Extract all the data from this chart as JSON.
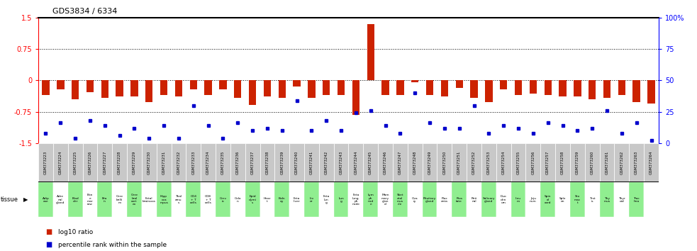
{
  "title": "GDS3834 / 6334",
  "gsm_ids": [
    "GSM373223",
    "GSM373224",
    "GSM373225",
    "GSM373226",
    "GSM373227",
    "GSM373228",
    "GSM373229",
    "GSM373230",
    "GSM373231",
    "GSM373232",
    "GSM373233",
    "GSM373234",
    "GSM373235",
    "GSM373236",
    "GSM373237",
    "GSM373238",
    "GSM373239",
    "GSM373240",
    "GSM373241",
    "GSM373242",
    "GSM373243",
    "GSM373244",
    "GSM373245",
    "GSM373246",
    "GSM373247",
    "GSM373248",
    "GSM373249",
    "GSM373250",
    "GSM373251",
    "GSM373252",
    "GSM373253",
    "GSM373254",
    "GSM373255",
    "GSM373256",
    "GSM373257",
    "GSM373258",
    "GSM373259",
    "GSM373260",
    "GSM373261",
    "GSM373262",
    "GSM373263",
    "GSM373264"
  ],
  "tissues": [
    "Adip\nose",
    "Adre\nnal\ngland",
    "Blad\nder",
    "Bon\ne\nmar\nrow",
    "Bra\nin",
    "Cere\nbelli\nm",
    "Cere\nbral\ncort\nex",
    "Fetal\nbrainoca",
    "Hipp\noca\nmpus",
    "Thal\namu\ns",
    "CD4\n+ T\ncells",
    "CD8\n+ T\ncells",
    "Cerv\nix",
    "Colo\nn",
    "Epid\ndymi\ns",
    "Hear\nt",
    "Kidn\ney",
    "Feta\nliver",
    "Liv\ner",
    "Feta\nlun\ng",
    "Lun\ng",
    "Feta\nlung\nph\nnode",
    "Lym\nph\nnod\ne",
    "Mam\nmary\nglan\nd",
    "Sket\netal\nmus\ncle",
    "Ova\nry",
    "Pituitary\ngland",
    "Plac\nenta",
    "Pros\ntate",
    "Reti\nnal",
    "Salivary\ngland",
    "Duo\nden\num",
    "Ileu\nm",
    "Jeju\nnum",
    "Spin\nal\ncord",
    "Sple\nen",
    "Sto\nmac\nt",
    "Test\nis",
    "Thy\nmus",
    "Thyr\noid",
    "Trac\nhea"
  ],
  "log10_ratio": [
    -0.35,
    -0.22,
    -0.45,
    -0.28,
    -0.42,
    -0.38,
    -0.38,
    -0.52,
    -0.35,
    -0.38,
    -0.22,
    -0.35,
    -0.22,
    -0.42,
    -0.58,
    -0.38,
    -0.42,
    -0.15,
    -0.42,
    -0.35,
    -0.35,
    -0.82,
    1.35,
    -0.35,
    -0.35,
    -0.05,
    -0.35,
    -0.38,
    -0.18,
    -0.42,
    -0.52,
    -0.22,
    -0.35,
    -0.32,
    -0.35,
    -0.38,
    -0.38,
    -0.45,
    -0.42,
    -0.35,
    -0.52,
    -0.55
  ],
  "percentile": [
    8,
    16,
    4,
    18,
    14,
    6,
    12,
    4,
    14,
    4,
    30,
    14,
    4,
    16,
    10,
    12,
    10,
    34,
    10,
    18,
    10,
    24,
    26,
    14,
    8,
    40,
    16,
    12,
    12,
    30,
    8,
    14,
    12,
    8,
    16,
    14,
    10,
    12,
    26,
    8,
    16,
    2
  ],
  "bar_color": "#cc2200",
  "dot_color": "#0000cc",
  "ylim": [
    -1.5,
    1.5
  ],
  "yticks_left": [
    -1.5,
    -0.75,
    0,
    0.75,
    1.5
  ],
  "yticks_right": [
    0,
    25,
    50,
    75,
    100
  ],
  "dotted_lines": [
    0.75,
    0.0,
    -0.75
  ],
  "bg_color_gsm": "#c8c8c8",
  "bg_color_tissue_green": "#90ee90",
  "bg_color_tissue_white": "#ffffff",
  "tissue_label": "tissue",
  "legend_bar_label": "log10 ratio",
  "legend_dot_label": "percentile rank within the sample"
}
